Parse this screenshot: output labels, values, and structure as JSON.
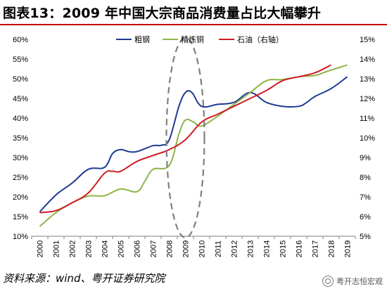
{
  "title": "图表13：2009 年中国大宗商品消费量占比大幅攀升",
  "source": "资料来源：wind、粤开证券研究院",
  "watermark": "粤开志恒宏观",
  "colors": {
    "title_rule": "#c00000",
    "steel": "#1f3a93",
    "copper": "#8db548",
    "oil": "#d01c24",
    "highlight": "#7f7f7f"
  },
  "chart_data": {
    "type": "line",
    "x": [
      "2000",
      "2001",
      "2002",
      "2003",
      "2004",
      "2005",
      "2006",
      "2007",
      "2008",
      "2009",
      "2010",
      "2011",
      "2012",
      "2013",
      "2014",
      "2015",
      "2016",
      "2017",
      "2018",
      "2019"
    ],
    "left_axis": {
      "ticks": [
        "10%",
        "15%",
        "20%",
        "25%",
        "30%",
        "35%",
        "40%",
        "45%",
        "50%",
        "55%",
        "60%"
      ],
      "ylim": [
        10,
        60
      ]
    },
    "right_axis": {
      "ticks": [
        "5%",
        "6%",
        "7%",
        "8%",
        "9%",
        "10%",
        "11%",
        "12%",
        "13%",
        "14%",
        "15%"
      ],
      "ylim": [
        5,
        15
      ]
    },
    "series": [
      {
        "name": "粗钢",
        "axis": "left",
        "x": [
          2000,
          2001,
          2002,
          2003,
          2004,
          2004.5,
          2005,
          2005.5,
          2006,
          2007,
          2007.5,
          2008,
          2008.6,
          2009,
          2009.4,
          2010,
          2011,
          2012,
          2013,
          2014,
          2015,
          2016,
          2016.5,
          2017,
          2018,
          2019
        ],
        "y": [
          16.2,
          20.5,
          23.5,
          27,
          27.5,
          31,
          32,
          31.5,
          31.5,
          33,
          33.1,
          34.5,
          43,
          46.5,
          46.5,
          43,
          43.5,
          44,
          46.5,
          44,
          43,
          43,
          44,
          45.5,
          47.5,
          50.5
        ]
      },
      {
        "name": "精炼铜",
        "axis": "left",
        "x": [
          2000,
          2001,
          2002,
          2003,
          2004,
          2005,
          2006,
          2006.5,
          2007,
          2008,
          2008.6,
          2009,
          2009.5,
          2010,
          2011,
          2012,
          2013,
          2014,
          2015,
          2016,
          2017,
          2017.5,
          2018,
          2019
        ],
        "y": [
          12.5,
          16,
          18.5,
          20.2,
          20.3,
          22,
          21.3,
          24,
          27,
          28,
          36,
          39.5,
          39,
          38,
          40.5,
          43.5,
          46.5,
          49.5,
          49.8,
          50.5,
          50.8,
          51.5,
          52.2,
          53.5
        ]
      },
      {
        "name": "石油（右轴）",
        "axis": "right",
        "x": [
          2000,
          2001,
          2002,
          2003,
          2004,
          2004.5,
          2005,
          2006,
          2007,
          2008,
          2009,
          2010,
          2011,
          2012,
          2013,
          2014,
          2015,
          2016,
          2017,
          2018
        ],
        "y": [
          6.2,
          6.3,
          6.7,
          7.2,
          8.2,
          8.3,
          8.3,
          8.8,
          9.1,
          9.4,
          9.9,
          10.8,
          11.2,
          11.6,
          12,
          12.4,
          12.9,
          13.1,
          13.3,
          13.7
        ]
      }
    ],
    "annotation": "dashed ellipse highlighting 2009",
    "legend": "top"
  }
}
